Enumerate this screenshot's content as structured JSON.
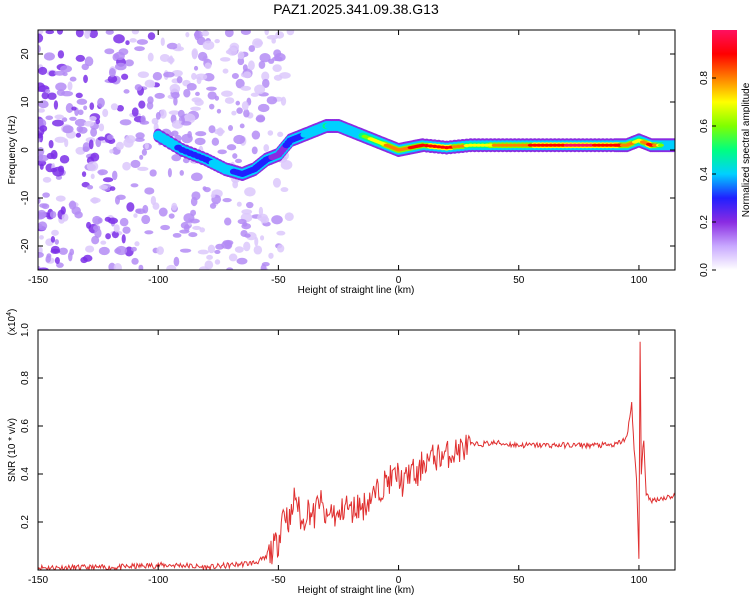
{
  "title": "PAZ1.2025.341.09.38.G13",
  "chart_data": [
    {
      "type": "heatmap",
      "xlabel": "Height of straight line (km)",
      "ylabel": "Frequency (Hz)",
      "xlim": [
        -150,
        115
      ],
      "ylim": [
        -25,
        25
      ],
      "xticks": [
        -150,
        -100,
        -50,
        0,
        50,
        100
      ],
      "yticks": [
        -20,
        -10,
        0,
        10,
        20
      ],
      "ridge": {
        "x": [
          -100,
          -90,
          -80,
          -72,
          -65,
          -60,
          -55,
          -50,
          -45,
          -40,
          -35,
          -30,
          -25,
          -20,
          -15,
          -10,
          -5,
          0,
          5,
          10,
          20,
          30,
          40,
          50,
          60,
          70,
          80,
          90,
          95,
          100,
          105,
          110,
          115
        ],
        "frequency": [
          3,
          0,
          -2,
          -4,
          -5,
          -4,
          -2,
          -1,
          2,
          3,
          4,
          5,
          5,
          4,
          3,
          2,
          1,
          0,
          0.5,
          1,
          0.5,
          1,
          1,
          1,
          1,
          1,
          1,
          1,
          1,
          2,
          1,
          1,
          1
        ],
        "amplitude": [
          0.5,
          0.45,
          0.45,
          0.5,
          0.4,
          0.45,
          0.35,
          0.3,
          0.35,
          0.45,
          0.55,
          0.6,
          0.55,
          0.55,
          0.6,
          0.7,
          0.75,
          0.8,
          0.85,
          0.85,
          0.9,
          0.7,
          0.75,
          0.8,
          0.9,
          0.95,
          0.95,
          0.9,
          0.8,
          0.7,
          0.9,
          0.6,
          0.55
        ]
      },
      "colorbar": {
        "label": "Normalized spectral amplitude",
        "range": [
          0,
          1
        ],
        "ticks": [
          "0.0",
          "0.2",
          "0.4",
          "0.6",
          "0.8"
        ],
        "colors": [
          "#ffffff",
          "#c8a8ff",
          "#8a2be2",
          "#2020ff",
          "#00d0ff",
          "#00ff80",
          "#80ff00",
          "#ffff00",
          "#ff8000",
          "#ff0000",
          "#ff1060"
        ]
      }
    },
    {
      "type": "line",
      "xlabel": "Height of straight line (km)",
      "ylabel": "SNR (10 * v/v)",
      "multiplier": "(x10",
      "multiplier_exp": "4",
      "multiplier_close": ")",
      "xlim": [
        -150,
        115
      ],
      "ylim": [
        0,
        1.0
      ],
      "xticks": [
        -150,
        -100,
        -50,
        0,
        50,
        100
      ],
      "yticks": [
        "0.2",
        "0.4",
        "0.6",
        "0.8",
        "1.0"
      ],
      "color": "#e03030",
      "series": [
        {
          "name": "SNR",
          "x": [
            -150,
            -120,
            -100,
            -90,
            -80,
            -70,
            -60,
            -55,
            -50,
            -48,
            -45,
            -43,
            -40,
            -38,
            -35,
            -33,
            -30,
            -28,
            -25,
            -22,
            -20,
            -17,
            -15,
            -12,
            -10,
            -7,
            -5,
            -3,
            0,
            2,
            5,
            8,
            10,
            15,
            20,
            25,
            30,
            40,
            50,
            60,
            70,
            80,
            90,
            95,
            97,
            98,
            99,
            100,
            100.5,
            101,
            102,
            103,
            105,
            110,
            115
          ],
          "values": [
            0.01,
            0.01,
            0.02,
            0.02,
            0.01,
            0.02,
            0.03,
            0.05,
            0.12,
            0.25,
            0.2,
            0.32,
            0.18,
            0.26,
            0.22,
            0.3,
            0.2,
            0.25,
            0.21,
            0.28,
            0.24,
            0.27,
            0.26,
            0.3,
            0.31,
            0.35,
            0.37,
            0.38,
            0.4,
            0.35,
            0.42,
            0.38,
            0.45,
            0.47,
            0.48,
            0.5,
            0.52,
            0.53,
            0.52,
            0.52,
            0.52,
            0.52,
            0.52,
            0.55,
            0.7,
            0.5,
            0.38,
            0.05,
            0.95,
            0.4,
            0.55,
            0.31,
            0.29,
            0.3,
            0.31
          ]
        }
      ]
    }
  ]
}
